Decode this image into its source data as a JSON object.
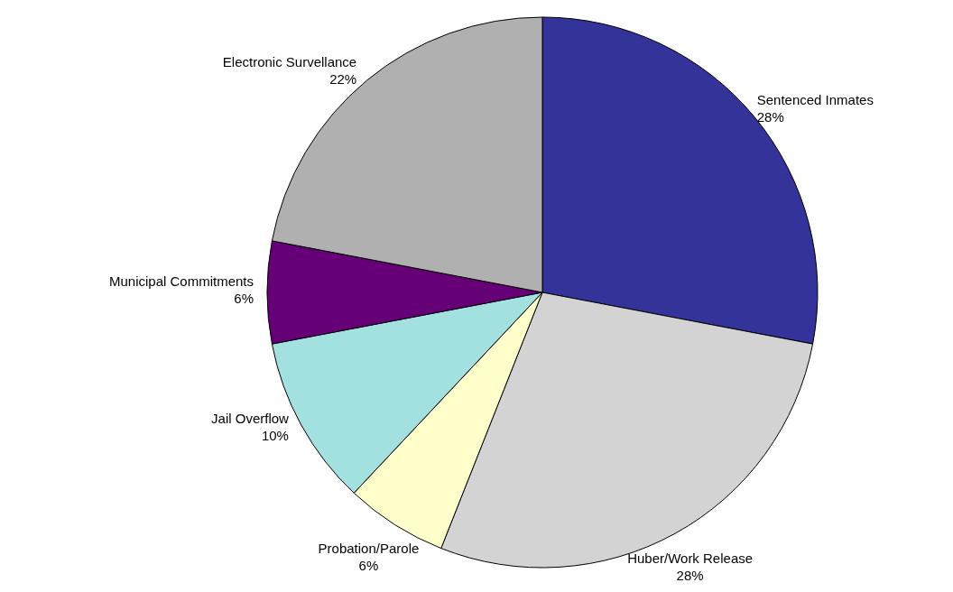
{
  "chart_data": {
    "type": "pie",
    "categories": [
      "Sentenced Inmates",
      "Huber/Work Release",
      "Probation/Parole",
      "Jail Overflow",
      "Municipal Commitments",
      "Electronic Survellance"
    ],
    "values": [
      28,
      28,
      6,
      10,
      6,
      22
    ],
    "value_labels": [
      "28%",
      "28%",
      "6%",
      "10%",
      "6%",
      "22%"
    ],
    "colors": [
      "#333399",
      "#d3d3d3",
      "#ffffcc",
      "#a3e0e0",
      "#660077",
      "#b0b0b0"
    ]
  }
}
